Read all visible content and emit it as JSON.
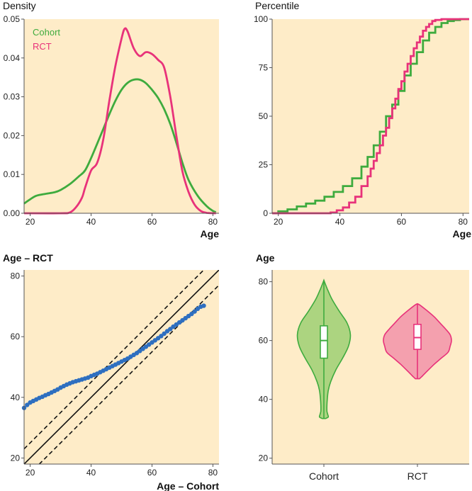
{
  "colors": {
    "cohort": "#3eab3e",
    "rct": "#e8327a",
    "qq_points": "#2e6fc0",
    "panel_bg": "#feecc8",
    "cohort_fill": "#acd480",
    "rct_fill": "#f4a0ae"
  },
  "chart_data": [
    {
      "id": "density",
      "type": "line",
      "title": "Density",
      "xlabel": "Age",
      "ylabel": "Density",
      "xlim": [
        18,
        82
      ],
      "ylim": [
        0,
        0.05
      ],
      "xticks": [
        "20",
        "40",
        "60",
        "80"
      ],
      "yticks": [
        "0.00",
        "0.01",
        "0.02",
        "0.03",
        "0.04",
        "0.05"
      ],
      "legend": [
        "Cohort",
        "RCT"
      ],
      "legend_position": "top-left",
      "series": [
        {
          "name": "Cohort",
          "x": [
            18,
            20,
            22,
            25,
            28,
            30,
            33,
            36,
            38,
            40,
            43,
            46,
            48,
            50,
            52,
            54,
            56,
            58,
            60,
            62,
            64,
            66,
            68,
            70,
            72,
            75,
            78,
            80,
            81
          ],
          "y": [
            0.0025,
            0.0036,
            0.0045,
            0.005,
            0.0054,
            0.006,
            0.0075,
            0.0095,
            0.011,
            0.0142,
            0.0198,
            0.0255,
            0.029,
            0.0318,
            0.0336,
            0.0344,
            0.0344,
            0.0335,
            0.0318,
            0.0297,
            0.0268,
            0.023,
            0.0182,
            0.013,
            0.0086,
            0.0045,
            0.0018,
            0.0006,
            0.0003
          ]
        },
        {
          "name": "RCT",
          "x": [
            18,
            30,
            33,
            35,
            37,
            38,
            40,
            42,
            44,
            46,
            48,
            50,
            51,
            52,
            54,
            56,
            58,
            60,
            62,
            64,
            66,
            68,
            70,
            72,
            74,
            76,
            78,
            81
          ],
          "y": [
            0,
            0,
            0.0002,
            0.0015,
            0.004,
            0.0065,
            0.011,
            0.013,
            0.019,
            0.029,
            0.038,
            0.045,
            0.0475,
            0.0468,
            0.0425,
            0.0405,
            0.0415,
            0.041,
            0.0395,
            0.0375,
            0.03,
            0.02,
            0.0108,
            0.0055,
            0.0022,
            0.0006,
            0.0001,
            0
          ]
        }
      ]
    },
    {
      "id": "ecdf",
      "type": "line",
      "title": "Percentile",
      "xlabel": "Age",
      "ylabel": "Percentile",
      "xlim": [
        18,
        82
      ],
      "ylim": [
        0,
        100
      ],
      "xticks": [
        "20",
        "40",
        "60",
        "80"
      ],
      "yticks": [
        "0",
        "25",
        "50",
        "75",
        "100"
      ],
      "series": [
        {
          "name": "Cohort",
          "x": [
            18,
            20,
            23,
            26,
            29,
            32,
            35,
            38,
            41,
            44,
            47,
            49,
            51,
            53,
            55,
            57,
            59,
            61,
            63,
            65,
            67,
            69,
            71,
            73,
            75,
            77,
            79,
            82
          ],
          "y": [
            0,
            1,
            2,
            3.5,
            5,
            6.5,
            8.5,
            11,
            14,
            18,
            24,
            29,
            35,
            42,
            50,
            56,
            63,
            71,
            77,
            83,
            89,
            93,
            96,
            98,
            99,
            99.5,
            100,
            100
          ]
        },
        {
          "name": "RCT",
          "x": [
            18,
            33,
            35,
            37,
            39,
            41,
            43,
            45,
            47,
            49,
            50,
            51,
            52,
            53,
            54,
            55,
            56,
            57,
            58,
            59,
            60,
            61,
            62,
            63,
            64,
            65,
            66,
            67,
            68,
            69,
            70,
            71,
            73,
            82
          ],
          "y": [
            0,
            0,
            0,
            0.4,
            1.5,
            3,
            5.5,
            8.5,
            14,
            19,
            23,
            27,
            31,
            35,
            40,
            44,
            49,
            54,
            59,
            64,
            68,
            73,
            77,
            81,
            85,
            88,
            91,
            94,
            96,
            97.5,
            99,
            99.6,
            100,
            100
          ]
        }
      ]
    },
    {
      "id": "qq",
      "type": "scatter",
      "title": "Age – RCT",
      "xlabel": "Age – Cohort",
      "ylabel": "Age – RCT",
      "xlim": [
        18,
        82
      ],
      "ylim": [
        18,
        82
      ],
      "xticks": [
        "20",
        "40",
        "60",
        "80"
      ],
      "yticks": [
        "20",
        "40",
        "60",
        "80"
      ],
      "reference_lines": [
        {
          "style": "solid",
          "offset": 0
        },
        {
          "style": "dashed",
          "offset": 5
        },
        {
          "style": "dashed",
          "offset": -5
        }
      ],
      "points": {
        "x": [
          18,
          19,
          20,
          21,
          22,
          23,
          24,
          25,
          26,
          27,
          28,
          29,
          30,
          31,
          32,
          33,
          34,
          35,
          36,
          37,
          38,
          39,
          40,
          41,
          42,
          43,
          44,
          45,
          46,
          47,
          48,
          49,
          50,
          51,
          52,
          53,
          54,
          55,
          56,
          57,
          58,
          59,
          60,
          61,
          62,
          63,
          64,
          65,
          66,
          67,
          68,
          69,
          70,
          71,
          72,
          73,
          74,
          75,
          76,
          77
        ],
        "y": [
          36.5,
          37.5,
          38.3,
          38.8,
          39.3,
          39.8,
          40.2,
          40.7,
          41.1,
          41.6,
          42.1,
          42.6,
          43.2,
          43.7,
          44.2,
          44.6,
          45,
          45.3,
          45.6,
          45.9,
          46.2,
          46.5,
          47,
          47.4,
          47.8,
          48.3,
          48.8,
          49.3,
          49.8,
          50.3,
          50.8,
          51.3,
          51.8,
          52.3,
          52.8,
          53.4,
          54,
          54.6,
          55.3,
          56,
          56.7,
          57.4,
          58.1,
          58.8,
          59.5,
          60.2,
          61,
          61.8,
          62.5,
          63.3,
          64,
          64.7,
          65.4,
          66.1,
          66.8,
          67.5,
          68.3,
          69.2,
          69.9,
          70.2
        ]
      }
    },
    {
      "id": "violin",
      "type": "violin",
      "title": "Age",
      "ylim": [
        18,
        84
      ],
      "yticks": [
        "20",
        "40",
        "60",
        "80"
      ],
      "categories": [
        "Cohort",
        "RCT"
      ],
      "series": [
        {
          "name": "Cohort",
          "min": 33.5,
          "max": 80.5,
          "q1": 54,
          "median": 60,
          "q3": 65,
          "profile_y": [
            33.5,
            34,
            35,
            36,
            38,
            40,
            43,
            46,
            50,
            54,
            58,
            62,
            66,
            70,
            74,
            77,
            79,
            80.5
          ],
          "profile_halfwidth": [
            0.05,
            0.13,
            0.11,
            0.09,
            0.09,
            0.1,
            0.13,
            0.2,
            0.35,
            0.55,
            0.72,
            0.78,
            0.68,
            0.45,
            0.24,
            0.12,
            0.05,
            0
          ]
        },
        {
          "name": "RCT",
          "min": 47,
          "max": 72.5,
          "q1": 57,
          "median": 61,
          "q3": 65.5,
          "profile_y": [
            47,
            48,
            50,
            52,
            54,
            56,
            58,
            60,
            62,
            64,
            66,
            68,
            70,
            72,
            72.5
          ],
          "profile_halfwidth": [
            0.06,
            0.15,
            0.32,
            0.5,
            0.7,
            0.9,
            0.96,
            1.0,
            0.96,
            0.82,
            0.66,
            0.5,
            0.3,
            0.08,
            0
          ]
        }
      ]
    }
  ]
}
